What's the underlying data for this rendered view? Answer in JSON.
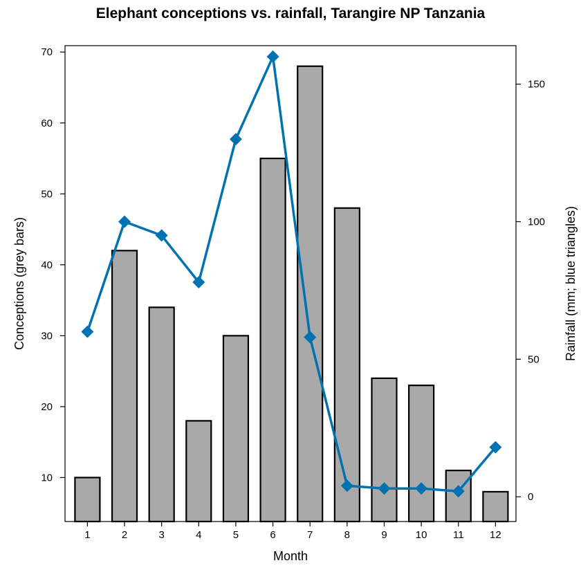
{
  "chart_data": {
    "type": "bar",
    "title": "Elephant conceptions vs. rainfall, Tarangire NP Tanzania",
    "xlabel": "Month",
    "ylabel": "Conceptions (grey bars)",
    "y2label": "Rainfall (mm; blue triangles)",
    "categories": [
      "1",
      "2",
      "3",
      "4",
      "5",
      "6",
      "7",
      "8",
      "9",
      "10",
      "11",
      "12"
    ],
    "series": [
      {
        "name": "Conceptions",
        "kind": "bar",
        "axis": "left",
        "color": "#a9a9a9",
        "values": [
          10,
          42,
          34,
          18,
          30,
          55,
          68,
          48,
          24,
          23,
          11,
          8
        ]
      },
      {
        "name": "Rainfall",
        "kind": "line",
        "axis": "right",
        "color": "#0072b2",
        "marker": "diamond",
        "values": [
          60,
          100,
          95,
          78,
          130,
          160,
          58,
          4,
          3,
          3,
          2,
          18
        ]
      }
    ],
    "ylim": [
      3.8,
      70.9
    ],
    "y2lim": [
      -9,
      164
    ],
    "yticks": [
      "10",
      "20",
      "30",
      "40",
      "50",
      "60",
      "70"
    ],
    "y2ticks": [
      "0",
      "50",
      "100",
      "150"
    ],
    "grid": false,
    "legend": "none"
  }
}
